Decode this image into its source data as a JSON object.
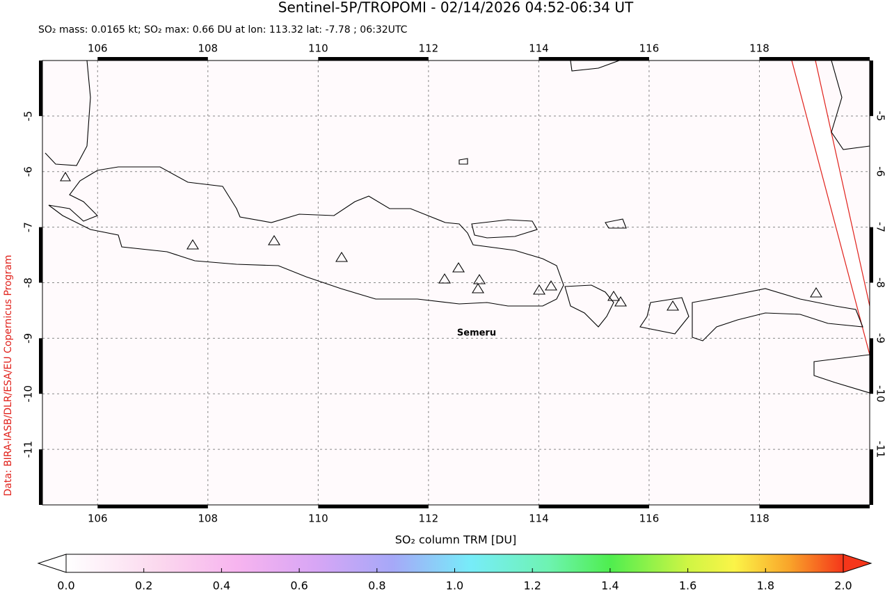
{
  "title": "Sentinel-5P/TROPOMI - 02/14/2026 04:52-06:34 UT",
  "subtitle": "SO₂ mass: 0.0165 kt; SO₂ max: 0.66 DU at lon: 113.32 lat: -7.78 ; 06:32UTC",
  "credit": "Data: BIRA-IASB/DLR/ESA/EU Copernicus Program",
  "map": {
    "xlim": [
      105,
      120
    ],
    "ylim": [
      -12,
      -4
    ],
    "xticks": [
      106,
      108,
      110,
      112,
      114,
      116,
      118
    ],
    "yticks": [
      -5,
      -6,
      -7,
      -8,
      -9,
      -10,
      -11
    ],
    "annotations": [
      "Semeru"
    ],
    "grid": true
  },
  "colorbar": {
    "label": "SO₂ column TRM [DU]",
    "lim": [
      0,
      2
    ],
    "ticks": [
      {
        "value": 0,
        "label": "0.0"
      },
      {
        "value": 0.2,
        "label": "0.2"
      },
      {
        "value": 0.4,
        "label": "0.4"
      },
      {
        "value": 0.6,
        "label": "0.6"
      },
      {
        "value": 0.8,
        "label": "0.8"
      },
      {
        "value": 1,
        "label": "1.0"
      },
      {
        "value": 1.2,
        "label": "1.2"
      },
      {
        "value": 1.4,
        "label": "1.4"
      },
      {
        "value": 1.6,
        "label": "1.6"
      },
      {
        "value": 1.8,
        "label": "1.8"
      },
      {
        "value": 2,
        "label": "2.0"
      }
    ]
  }
}
